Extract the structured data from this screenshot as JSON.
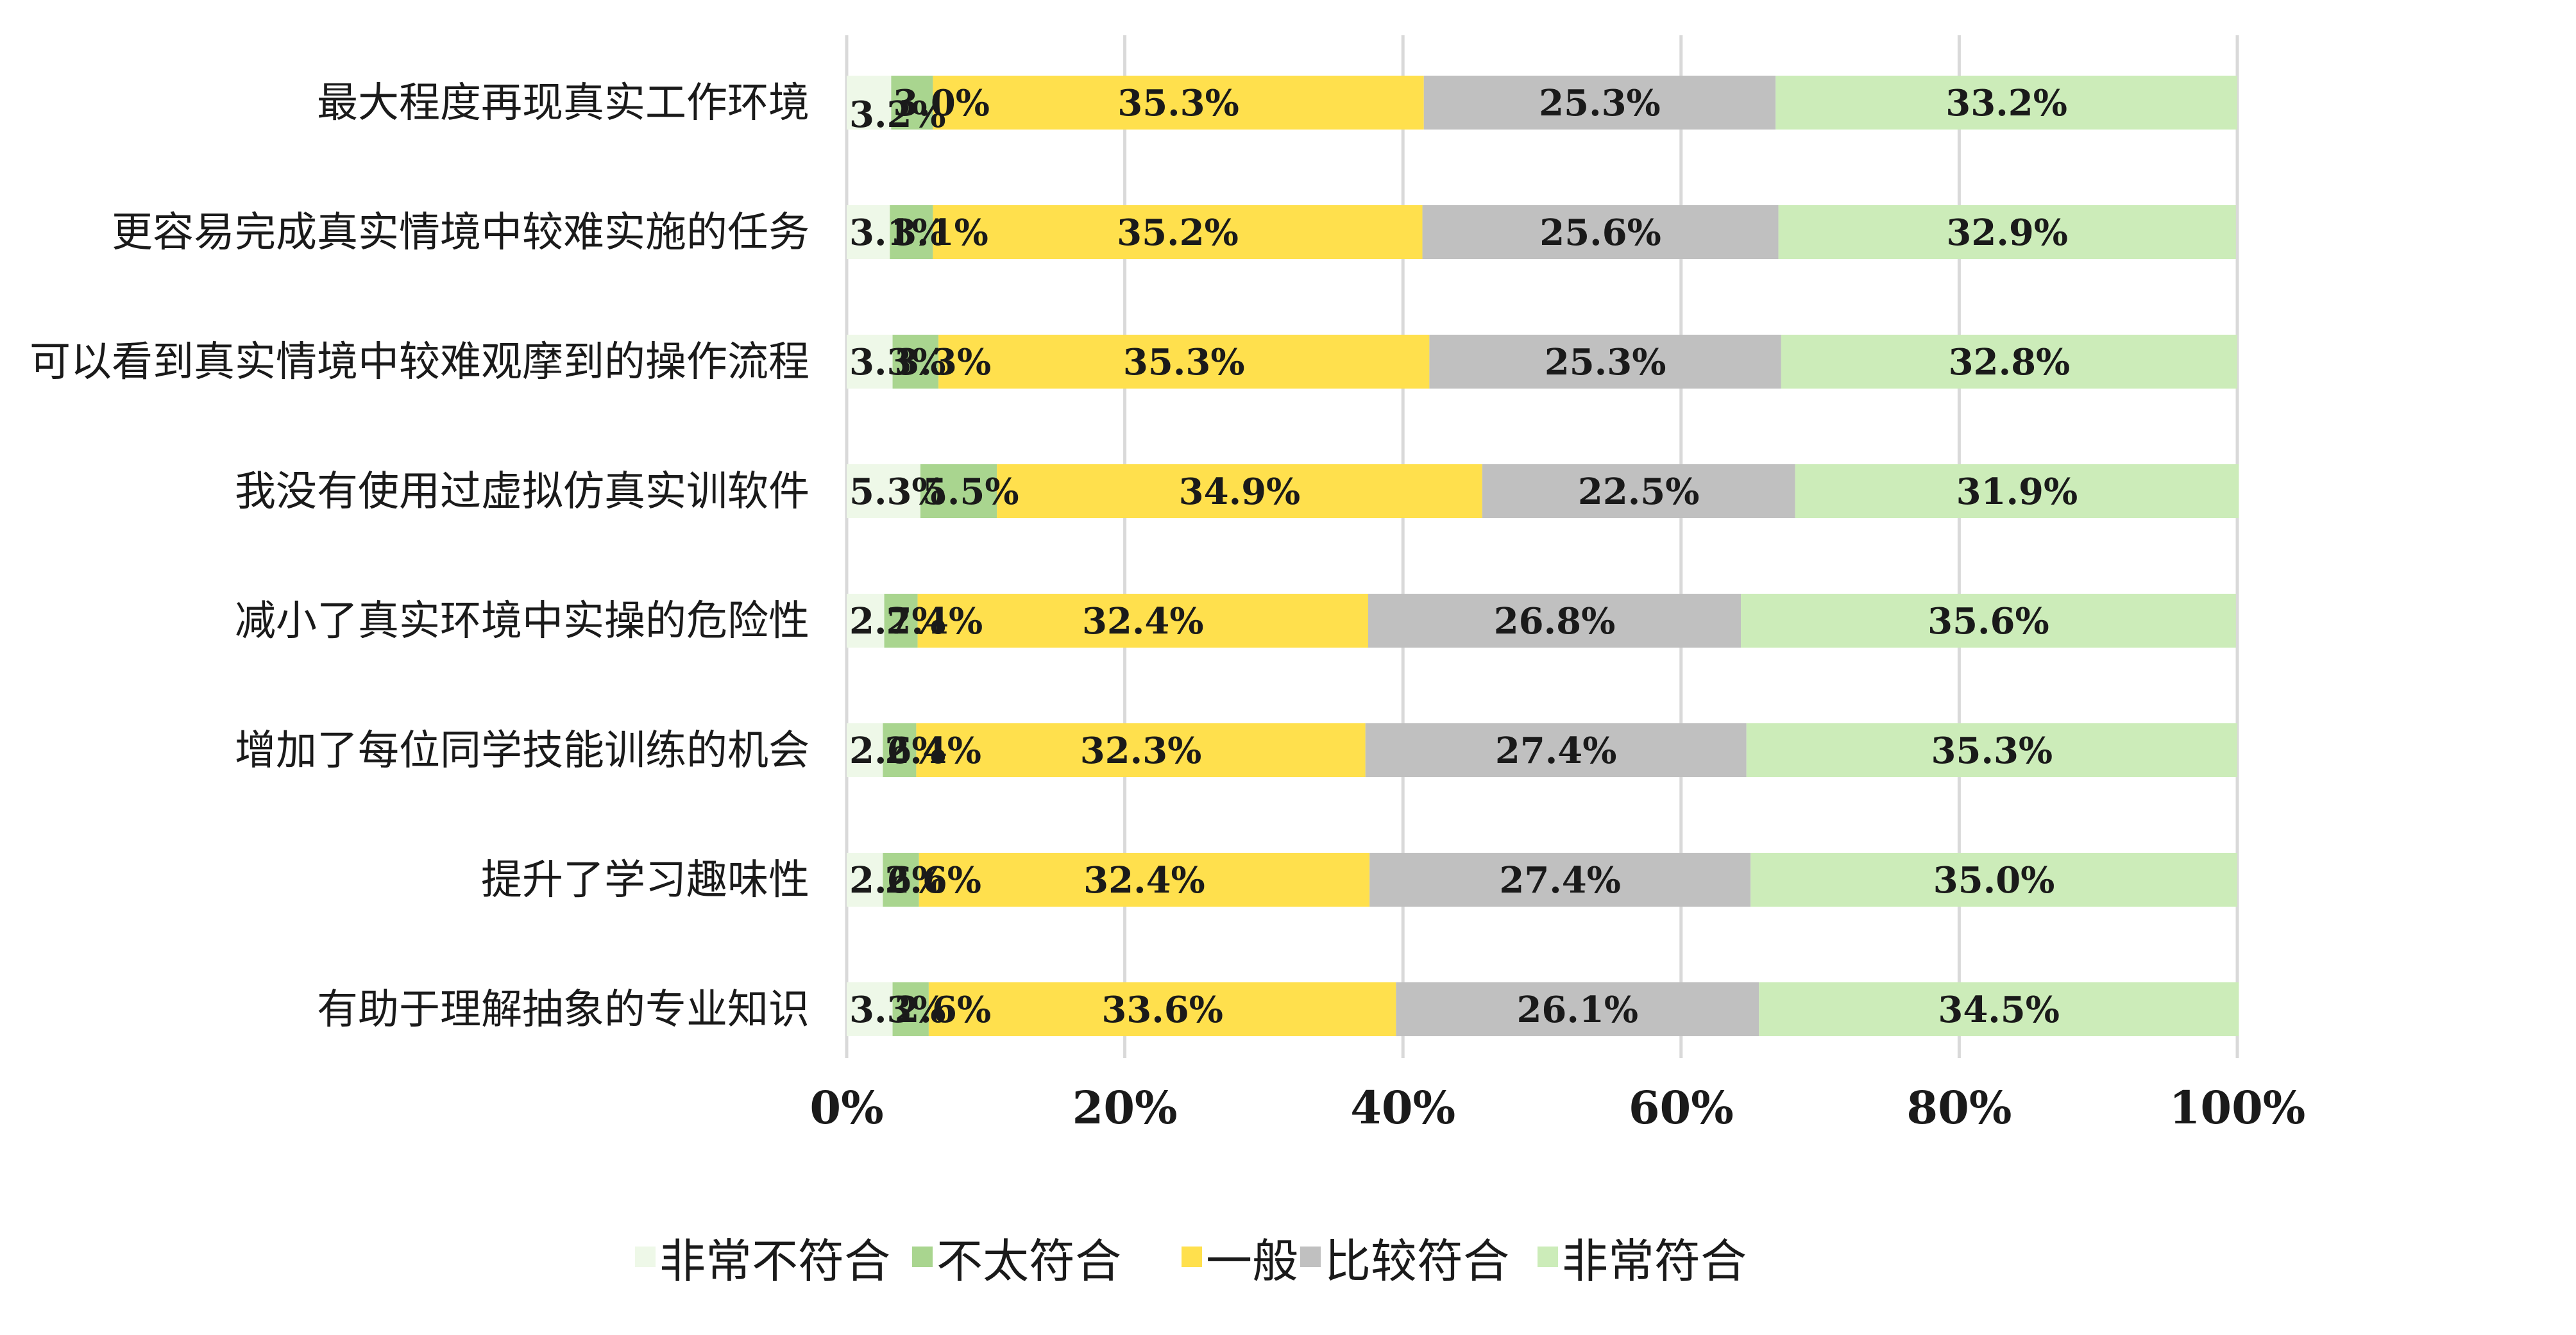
{
  "chart_data": {
    "type": "bar",
    "orientation": "horizontal",
    "stacked": true,
    "categories": [
      "最大程度再现真实工作环境",
      "更容易完成真实情境中较难实施的任务",
      "可以看到真实情境中较难观摩到的操作流程",
      "我没有使用过虚拟仿真实训软件",
      "减小了真实环境中实操的危险性",
      "增加了每位同学技能训练的机会",
      "提升了学习趣味性",
      "有助于理解抽象的专业知识"
    ],
    "series": [
      {
        "name": "非常不符合",
        "color": "#eef8e8",
        "values": [
          3.2,
          3.1,
          3.3,
          5.3,
          2.7,
          2.6,
          2.6,
          3.3
        ]
      },
      {
        "name": "不太符合",
        "color": "#a9d58f",
        "values": [
          3.0,
          3.1,
          3.3,
          5.5,
          2.4,
          2.4,
          2.6,
          2.6
        ]
      },
      {
        "name": "一般",
        "color": "#ffe04d",
        "values": [
          35.3,
          35.2,
          35.3,
          34.9,
          32.4,
          32.3,
          32.4,
          33.6
        ]
      },
      {
        "name": "比较符合",
        "color": "#c0c0c0",
        "values": [
          25.3,
          25.6,
          25.3,
          22.5,
          26.8,
          27.4,
          27.4,
          26.1
        ]
      },
      {
        "name": "非常符合",
        "color": "#ccecb9",
        "values": [
          33.2,
          32.9,
          32.8,
          31.9,
          35.6,
          35.3,
          35.0,
          34.5
        ]
      }
    ],
    "data_labels": [
      [
        "3.2%",
        "3.1%",
        "3.3%",
        "5.3%",
        "2.7%",
        "2.6%",
        "2.6%",
        "3.3%"
      ],
      [
        "3.0%",
        "3.1%",
        "3.3%",
        "5.5%",
        "2.4%",
        "2.4%",
        "2.6%",
        "2.6%"
      ],
      [
        "35.3%",
        "35.2%",
        "35.3%",
        "34.9%",
        "32.4%",
        "32.3%",
        "32.4%",
        "33.6%"
      ],
      [
        "25.3%",
        "25.6%",
        "25.3%",
        "22.5%",
        "26.8%",
        "27.4%",
        "27.4%",
        "26.1%"
      ],
      [
        "33.2%",
        "32.9%",
        "32.8%",
        "31.9%",
        "35.6%",
        "35.3%",
        "35.0%",
        "34.5%"
      ]
    ],
    "xlim": [
      0,
      100
    ],
    "x_ticks": [
      "0%",
      "20%",
      "40%",
      "60%",
      "80%",
      "100%"
    ],
    "x_tick_values": [
      0,
      20,
      40,
      60,
      80,
      100
    ],
    "grid": "vertical",
    "legend_position": "bottom",
    "title": "",
    "xlabel": "",
    "ylabel": ""
  }
}
